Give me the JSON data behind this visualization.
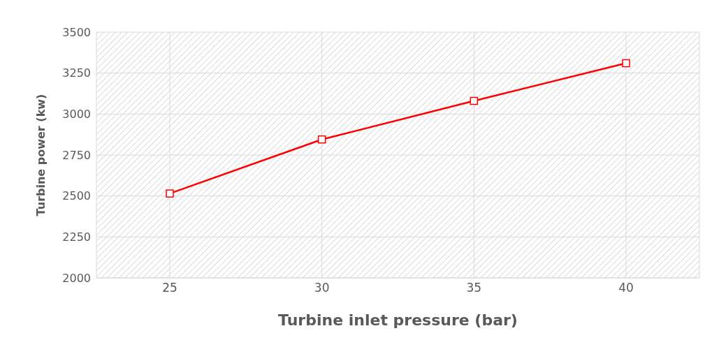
{
  "chart_data": {
    "type": "line",
    "xlabel": "Turbine inlet pressure (bar)",
    "ylabel": "Turbine power (kw)",
    "categories": [
      "25",
      "30",
      "35",
      "40"
    ],
    "series": [
      {
        "color": "#ff0000",
        "values": [
          2515,
          2845,
          3080,
          3310
        ]
      }
    ],
    "ylim": [
      2000,
      3500
    ],
    "yticks": [
      2000,
      2250,
      2500,
      2750,
      3000,
      3250,
      3500
    ],
    "grid": true,
    "marker": "square",
    "line_style": "solid"
  }
}
